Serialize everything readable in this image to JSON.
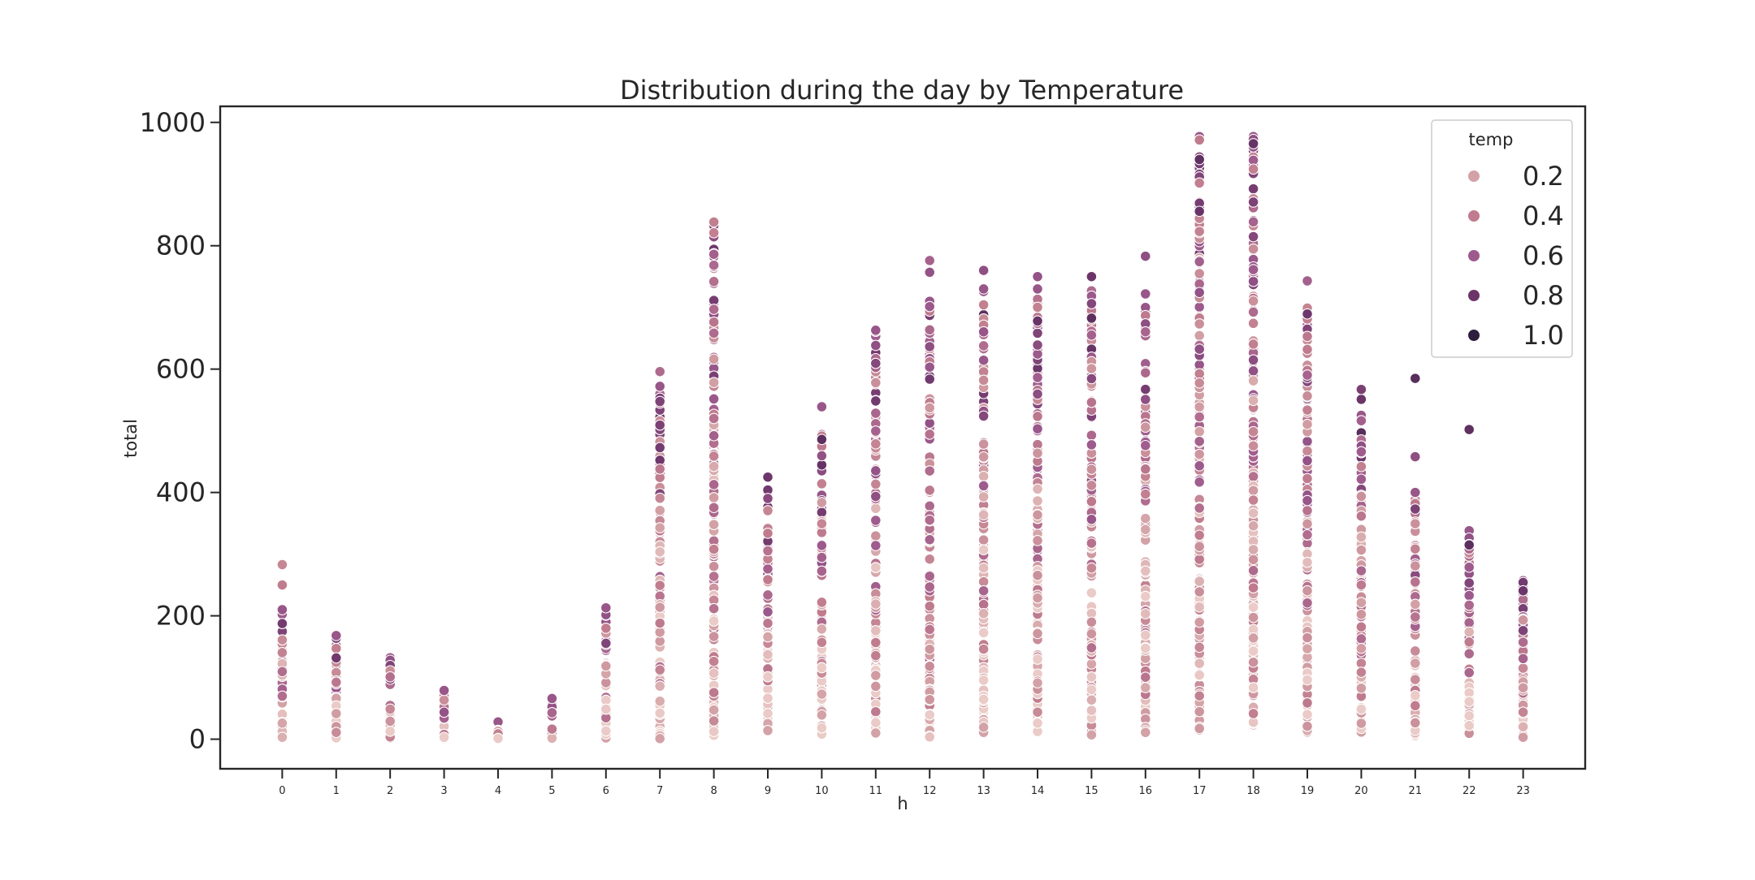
{
  "chart_data": {
    "type": "scatter",
    "title": "Distribution during the day by Temperature",
    "xlabel": "h",
    "ylabel": "total",
    "x_ticks": [
      "0",
      "1",
      "2",
      "3",
      "4",
      "5",
      "6",
      "7",
      "8",
      "9",
      "10",
      "11",
      "12",
      "13",
      "14",
      "15",
      "16",
      "17",
      "18",
      "19",
      "20",
      "21",
      "22",
      "23"
    ],
    "y_ticks": [
      0,
      200,
      400,
      600,
      800,
      1000
    ],
    "xlim": [
      -1.15,
      24.15
    ],
    "ylim": [
      -48,
      1026
    ],
    "grid": false,
    "legend": {
      "title": "temp",
      "placement": "top-right",
      "entries": [
        {
          "label": "0.2",
          "color": "#d3a2a6"
        },
        {
          "label": "0.4",
          "color": "#c07c8e"
        },
        {
          "label": "0.6",
          "color": "#9d5a8d"
        },
        {
          "label": "0.8",
          "color": "#6b3569"
        },
        {
          "label": "1.0",
          "color": "#2d1e3e"
        }
      ]
    },
    "hue_variable": "temp",
    "hue_range": [
      0.02,
      1.0
    ],
    "hours": [
      {
        "h": 0,
        "min": 2,
        "max": 210,
        "outliers": [
          {
            "y": 283,
            "temp": 0.34
          },
          {
            "y": 250,
            "temp": 0.4
          }
        ]
      },
      {
        "h": 1,
        "min": 2,
        "max": 168,
        "outliers": []
      },
      {
        "h": 2,
        "min": 2,
        "max": 132,
        "outliers": []
      },
      {
        "h": 3,
        "min": 1,
        "max": 79,
        "outliers": []
      },
      {
        "h": 4,
        "min": 1,
        "max": 28,
        "outliers": []
      },
      {
        "h": 5,
        "min": 1,
        "max": 66,
        "outliers": []
      },
      {
        "h": 6,
        "min": 2,
        "max": 213,
        "outliers": []
      },
      {
        "h": 7,
        "min": 1,
        "max": 572,
        "outliers": [
          {
            "y": 596,
            "temp": 0.5
          }
        ]
      },
      {
        "h": 8,
        "min": 5,
        "max": 839,
        "outliers": []
      },
      {
        "h": 9,
        "min": 14,
        "max": 426,
        "outliers": []
      },
      {
        "h": 10,
        "min": 8,
        "max": 494,
        "outliers": [
          {
            "y": 539,
            "temp": 0.62
          }
        ]
      },
      {
        "h": 11,
        "min": 10,
        "max": 663,
        "outliers": []
      },
      {
        "h": 12,
        "min": 3,
        "max": 710,
        "outliers": [
          {
            "y": 757,
            "temp": 0.64
          },
          {
            "y": 776,
            "temp": 0.55
          }
        ]
      },
      {
        "h": 13,
        "min": 11,
        "max": 730,
        "outliers": [
          {
            "y": 760,
            "temp": 0.66
          }
        ]
      },
      {
        "h": 14,
        "min": 12,
        "max": 730,
        "outliers": [
          {
            "y": 750,
            "temp": 0.64
          }
        ]
      },
      {
        "h": 15,
        "min": 7,
        "max": 728,
        "outliers": [
          {
            "y": 750,
            "temp": 0.8
          }
        ]
      },
      {
        "h": 16,
        "min": 11,
        "max": 700,
        "outliers": [
          {
            "y": 783,
            "temp": 0.66
          },
          {
            "y": 722,
            "temp": 0.62
          }
        ]
      },
      {
        "h": 17,
        "min": 15,
        "max": 977,
        "outliers": []
      },
      {
        "h": 18,
        "min": 23,
        "max": 977,
        "outliers": []
      },
      {
        "h": 19,
        "min": 11,
        "max": 700,
        "outliers": [
          {
            "y": 743,
            "temp": 0.56
          }
        ]
      },
      {
        "h": 20,
        "min": 11,
        "max": 525,
        "outliers": [
          {
            "y": 551,
            "temp": 0.8
          },
          {
            "y": 567,
            "temp": 0.74
          }
        ]
      },
      {
        "h": 21,
        "min": 6,
        "max": 400,
        "outliers": [
          {
            "y": 458,
            "temp": 0.66
          },
          {
            "y": 585,
            "temp": 0.86
          }
        ]
      },
      {
        "h": 22,
        "min": 9,
        "max": 338,
        "outliers": [
          {
            "y": 502,
            "temp": 0.84
          }
        ]
      },
      {
        "h": 23,
        "min": 2,
        "max": 257,
        "outliers": []
      }
    ]
  }
}
